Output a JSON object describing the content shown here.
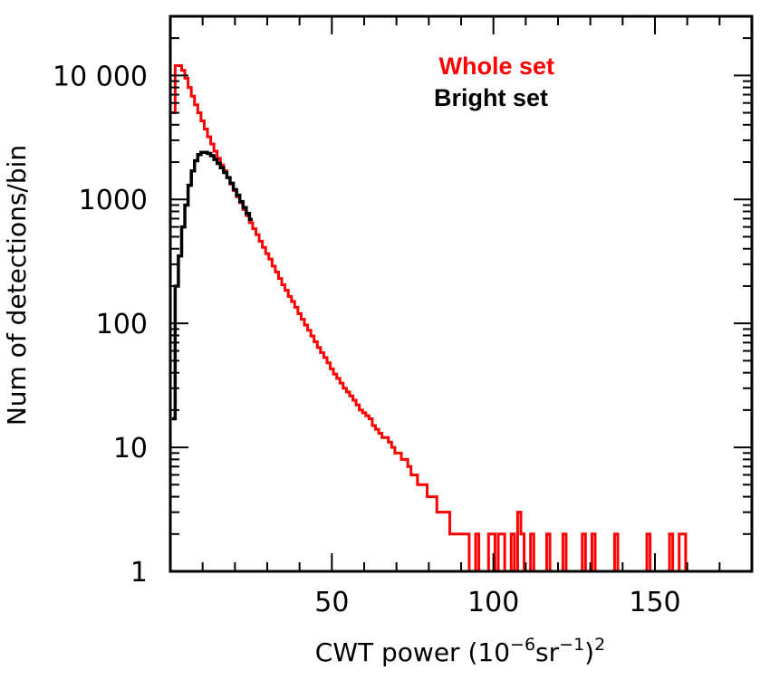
{
  "chart_data": {
    "type": "line",
    "title": "",
    "xlabel": {
      "prefix": "CWT power (10",
      "exp1": "−6",
      "mid": "sr",
      "exp2": "−1",
      "close": ")",
      "exp3": "2"
    },
    "ylabel": "Num of detections/bin",
    "xlim": [
      0,
      180
    ],
    "ylim": [
      1,
      30000
    ],
    "yscale": "log",
    "x_ticks": [
      50,
      100,
      150
    ],
    "x_tick_labels": [
      "50",
      "100",
      "150"
    ],
    "y_ticks": [
      1,
      10,
      100,
      1000,
      10000
    ],
    "y_tick_labels": [
      "1",
      "10",
      "100",
      "1000",
      "10 000"
    ],
    "legend": {
      "placement": "top-right"
    },
    "series": [
      {
        "name": "Whole set",
        "color": "#ff0000",
        "x": [
          1,
          2,
          3,
          4,
          5,
          6,
          7,
          8,
          9,
          10,
          11,
          12,
          13,
          14,
          15,
          16,
          17,
          18,
          19,
          20,
          21,
          22,
          23,
          24,
          25,
          26,
          27,
          28,
          29,
          30,
          31,
          32,
          33,
          34,
          35,
          36,
          37,
          38,
          39,
          40,
          41,
          42,
          43,
          44,
          45,
          46,
          47,
          48,
          49,
          50,
          51,
          52,
          53,
          54,
          55,
          56,
          57,
          58,
          59,
          60,
          61,
          62,
          63,
          64,
          65,
          66,
          67,
          68,
          69,
          70,
          71,
          72,
          73,
          74,
          75,
          76,
          77,
          78,
          79,
          80,
          81,
          82,
          83,
          84,
          85,
          86,
          87,
          88,
          89,
          90,
          91,
          92,
          93,
          94,
          95,
          96,
          97,
          98,
          99,
          100,
          101,
          102,
          103,
          104,
          105,
          106,
          107,
          108,
          109,
          110,
          112,
          114,
          117,
          119,
          122,
          125,
          128,
          130,
          131,
          133,
          135,
          138,
          140,
          144,
          148,
          151,
          153,
          155,
          157,
          158,
          159,
          161,
          165,
          168
        ],
        "values": [
          5000,
          12000,
          12000,
          11000,
          9500,
          8000,
          6800,
          5800,
          5000,
          4300,
          3700,
          3200,
          2800,
          2450,
          2150,
          1900,
          1700,
          1500,
          1330,
          1180,
          1050,
          940,
          830,
          740,
          650,
          580,
          520,
          460,
          410,
          365,
          330,
          290,
          260,
          230,
          205,
          185,
          165,
          150,
          135,
          120,
          108,
          97,
          88,
          79,
          71,
          64,
          58,
          53,
          48,
          43,
          39,
          36,
          33,
          30,
          28,
          26,
          24,
          22,
          20,
          19,
          18,
          17,
          15,
          14,
          13,
          12,
          12,
          11,
          10,
          9,
          9,
          8,
          8,
          7,
          6,
          6,
          5,
          5,
          5,
          4,
          4,
          4,
          3,
          3,
          3,
          3,
          2,
          2,
          2,
          2,
          2,
          2,
          1,
          1,
          2,
          1,
          1,
          1,
          2,
          2,
          1,
          2,
          2,
          1,
          1,
          2,
          1,
          3,
          2,
          1,
          2,
          1,
          2,
          1,
          2,
          1,
          2,
          1,
          2,
          1,
          1,
          2,
          1,
          1,
          2,
          1,
          1,
          2,
          1,
          2,
          2,
          1,
          1,
          1
        ],
        "data_labels": []
      },
      {
        "name": "Bright set",
        "color": "#000000",
        "x": [
          1,
          2,
          3,
          4,
          5,
          6,
          7,
          8,
          9,
          10,
          11,
          12,
          13,
          14,
          15,
          16,
          17,
          18,
          19,
          20,
          21,
          22,
          23,
          24,
          25
        ],
        "values": [
          17,
          200,
          350,
          600,
          900,
          1300,
          1700,
          2050,
          2300,
          2400,
          2400,
          2350,
          2250,
          2100,
          1950,
          1800,
          1650,
          1500,
          1350,
          1200,
          1080,
          960,
          860,
          770,
          690
        ]
      }
    ]
  }
}
